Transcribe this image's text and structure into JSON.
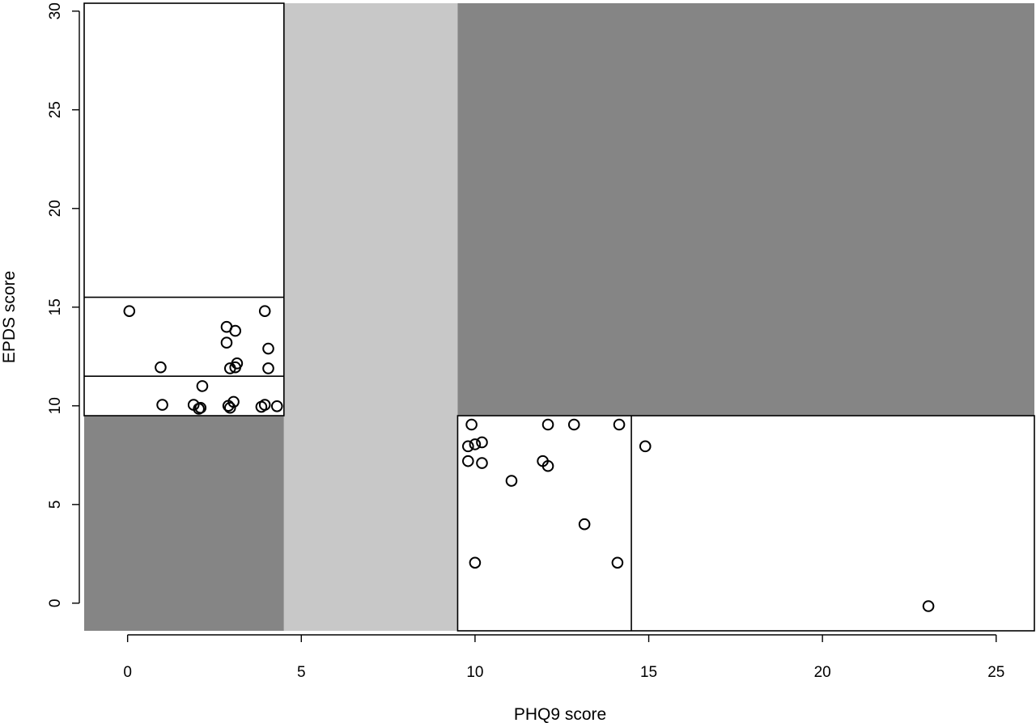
{
  "chart_data": {
    "type": "scatter",
    "title": "",
    "xlabel": "PHQ9 score",
    "ylabel": "EPDS score",
    "xlim": [
      -1.25,
      26.1
    ],
    "ylim": [
      -1.4,
      30.4
    ],
    "x_ticks": [
      0,
      5,
      10,
      15,
      20,
      25
    ],
    "y_ticks": [
      0,
      5,
      10,
      15,
      20,
      25,
      30
    ],
    "grid": false,
    "colors": {
      "dark_region": "#858585",
      "light_region": "#c8c8c8",
      "background": "#ffffff",
      "marker": "#000000"
    },
    "regions": [
      {
        "x0": -1.25,
        "x1": 4.5,
        "y0": -1.4,
        "y1": 9.5,
        "fill": "dark"
      },
      {
        "x0": 4.5,
        "x1": 9.5,
        "y0": -1.4,
        "y1": 30.4,
        "fill": "light"
      },
      {
        "x0": 9.5,
        "x1": 26.1,
        "y0": 9.5,
        "y1": 30.4,
        "fill": "dark"
      }
    ],
    "boxes": [
      {
        "x0": -1.25,
        "x1": 4.5,
        "y0": 9.5,
        "y1": 30.4
      },
      {
        "x0": 9.5,
        "x1": 26.1,
        "y0": -1.4,
        "y1": 9.5
      }
    ],
    "hlines": [
      {
        "y": 15.5,
        "x0": -1.25,
        "x1": 4.5
      },
      {
        "y": 11.5,
        "x0": -1.25,
        "x1": 4.5
      }
    ],
    "vlines": [
      {
        "x": 14.5,
        "y0": -1.4,
        "y1": 9.5
      }
    ],
    "points": [
      {
        "x": 0.05,
        "y": 14.8
      },
      {
        "x": 3.95,
        "y": 14.8
      },
      {
        "x": 2.85,
        "y": 14.0
      },
      {
        "x": 3.1,
        "y": 13.8
      },
      {
        "x": 2.85,
        "y": 13.2
      },
      {
        "x": 4.05,
        "y": 12.9
      },
      {
        "x": 3.15,
        "y": 12.15
      },
      {
        "x": 0.95,
        "y": 11.95
      },
      {
        "x": 3.1,
        "y": 11.95
      },
      {
        "x": 2.95,
        "y": 11.9
      },
      {
        "x": 4.05,
        "y": 11.9
      },
      {
        "x": 2.15,
        "y": 11.0
      },
      {
        "x": 3.05,
        "y": 10.2
      },
      {
        "x": 1.0,
        "y": 10.05
      },
      {
        "x": 1.9,
        "y": 10.05
      },
      {
        "x": 2.9,
        "y": 10.0
      },
      {
        "x": 3.95,
        "y": 10.05
      },
      {
        "x": 4.3,
        "y": 9.98
      },
      {
        "x": 3.85,
        "y": 9.95
      },
      {
        "x": 2.1,
        "y": 9.9
      },
      {
        "x": 2.95,
        "y": 9.9
      },
      {
        "x": 2.05,
        "y": 9.85
      },
      {
        "x": 9.9,
        "y": 9.05
      },
      {
        "x": 12.1,
        "y": 9.05
      },
      {
        "x": 12.85,
        "y": 9.05
      },
      {
        "x": 14.15,
        "y": 9.05
      },
      {
        "x": 10.2,
        "y": 8.15
      },
      {
        "x": 10.0,
        "y": 8.05
      },
      {
        "x": 9.8,
        "y": 7.95
      },
      {
        "x": 14.9,
        "y": 7.95
      },
      {
        "x": 9.8,
        "y": 7.2
      },
      {
        "x": 11.95,
        "y": 7.2
      },
      {
        "x": 10.2,
        "y": 7.1
      },
      {
        "x": 12.1,
        "y": 6.95
      },
      {
        "x": 11.05,
        "y": 6.2
      },
      {
        "x": 13.15,
        "y": 4.0
      },
      {
        "x": 10.0,
        "y": 2.05
      },
      {
        "x": 14.1,
        "y": 2.05
      },
      {
        "x": 23.05,
        "y": -0.15
      }
    ]
  }
}
